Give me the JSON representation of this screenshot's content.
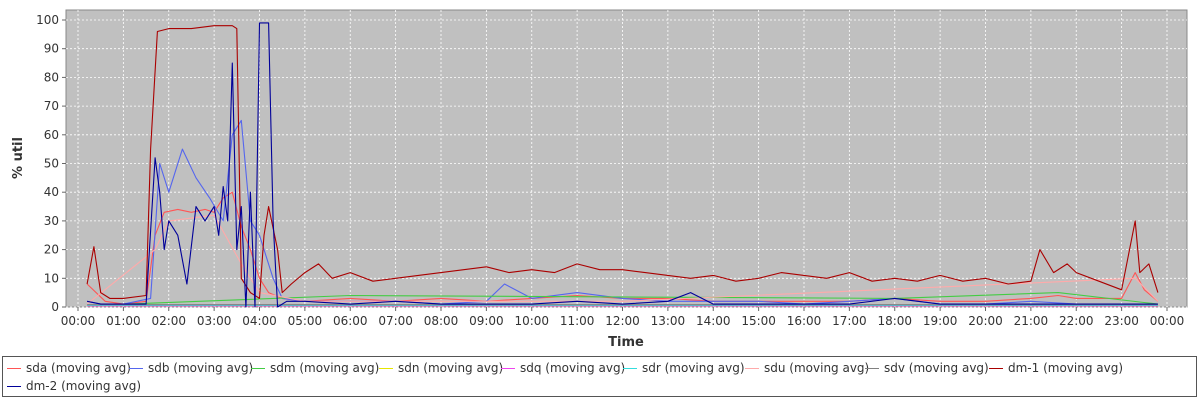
{
  "chart_data": {
    "type": "line",
    "title": "",
    "xlabel": "Time",
    "ylabel": "% util",
    "ylim": [
      0,
      100
    ],
    "xlim": [
      "00:00",
      "24:00"
    ],
    "yticks": [
      "0",
      "10",
      "20",
      "30",
      "40",
      "50",
      "60",
      "70",
      "80",
      "90",
      "100"
    ],
    "xticks": [
      "00:00",
      "01:00",
      "02:00",
      "03:00",
      "04:00",
      "05:00",
      "06:00",
      "07:00",
      "08:00",
      "09:00",
      "10:00",
      "11:00",
      "12:00",
      "13:00",
      "14:00",
      "15:00",
      "16:00",
      "17:00",
      "18:00",
      "19:00",
      "20:00",
      "21:00",
      "22:00",
      "23:00",
      "00:00"
    ],
    "grid": true,
    "legend_position": "bottom",
    "background": "#c0c0c0",
    "series": [
      {
        "name": "sda (moving avg)",
        "color": "#ff5555",
        "x": [
          0.2,
          0.6,
          1.0,
          1.5,
          1.7,
          1.9,
          2.2,
          2.5,
          2.8,
          3.0,
          3.2,
          3.4,
          3.6,
          3.8,
          4.0,
          4.2,
          4.5,
          5.0,
          6.0,
          7.0,
          8.0,
          9.0,
          10.0,
          11.0,
          12.0,
          13.0,
          14.0,
          15.0,
          16.0,
          17.0,
          18.0,
          19.0,
          20.0,
          21.0,
          21.6,
          22.0,
          23.0,
          23.3,
          23.5,
          23.8
        ],
        "y": [
          8,
          2,
          1,
          2,
          25,
          33,
          34,
          33,
          34,
          33,
          38,
          40,
          28,
          20,
          10,
          5,
          3,
          2,
          3,
          2,
          3,
          2,
          3,
          4,
          3,
          3,
          2,
          2,
          2,
          2,
          3,
          2,
          2,
          3,
          4,
          3,
          3,
          12,
          6,
          2
        ]
      },
      {
        "name": "sdb (moving avg)",
        "color": "#5566ee",
        "x": [
          0.2,
          0.5,
          1.0,
          1.6,
          1.8,
          2.0,
          2.3,
          2.6,
          2.9,
          3.2,
          3.4,
          3.6,
          3.8,
          4.0,
          4.1,
          4.3,
          4.5,
          5.0,
          6.0,
          7.0,
          8.0,
          9.0,
          9.4,
          10.0,
          11.0,
          12.0,
          13.0,
          14.0,
          15.0,
          16.0,
          17.0,
          18.0,
          19.0,
          20.0,
          21.0,
          22.0,
          23.0,
          23.8
        ],
        "y": [
          2,
          1,
          1,
          3,
          50,
          40,
          55,
          45,
          38,
          30,
          60,
          65,
          30,
          25,
          20,
          10,
          3,
          2,
          2,
          2,
          1,
          2,
          8,
          3,
          5,
          3,
          2,
          2,
          2,
          1,
          2,
          3,
          1,
          1,
          2,
          1,
          1,
          1
        ]
      },
      {
        "name": "sdm (moving avg)",
        "color": "#44cc44",
        "x": [
          0.2,
          6.0,
          18.0,
          21.6,
          23.8
        ],
        "y": [
          0.5,
          4,
          3,
          5,
          1
        ]
      },
      {
        "name": "sdn (moving avg)",
        "color": "#e6e600",
        "x": [
          0.2,
          23.8
        ],
        "y": [
          0.3,
          0.3
        ]
      },
      {
        "name": "sdq (moving avg)",
        "color": "#ee44ee",
        "x": [
          0.2,
          23.8
        ],
        "y": [
          0.4,
          0.4
        ]
      },
      {
        "name": "sdr (moving avg)",
        "color": "#33dddd",
        "x": [
          0.2,
          23.8
        ],
        "y": [
          0.6,
          0.6
        ]
      },
      {
        "name": "sdu (moving avg)",
        "color": "#ffaaaa",
        "x": [
          0.2,
          1.7,
          2.0,
          3.0,
          3.6,
          4.0,
          5.0,
          12.0,
          23.3,
          23.8
        ],
        "y": [
          1,
          20,
          30,
          32,
          15,
          5,
          2,
          2,
          10,
          2
        ]
      },
      {
        "name": "sdv (moving avg)",
        "color": "#808080",
        "x": [
          0.2,
          23.8
        ],
        "y": [
          0.8,
          0.8
        ]
      },
      {
        "name": "dm-1 (moving avg)",
        "color": "#aa0000",
        "x": [
          0.2,
          0.35,
          0.5,
          0.7,
          1.0,
          1.5,
          1.6,
          1.75,
          2.0,
          2.5,
          3.0,
          3.4,
          3.5,
          3.6,
          3.8,
          4.0,
          4.1,
          4.2,
          4.4,
          4.5,
          4.7,
          5.0,
          5.3,
          5.6,
          6.0,
          6.5,
          7.0,
          7.5,
          8.0,
          8.5,
          9.0,
          9.5,
          10.0,
          10.5,
          11.0,
          11.5,
          12.0,
          12.5,
          13.0,
          13.5,
          14.0,
          14.5,
          15.0,
          15.5,
          16.0,
          16.5,
          17.0,
          17.5,
          18.0,
          18.5,
          19.0,
          19.5,
          20.0,
          20.5,
          21.0,
          21.2,
          21.5,
          21.8,
          22.0,
          22.5,
          23.0,
          23.3,
          23.4,
          23.6,
          23.8
        ],
        "y": [
          8,
          21,
          5,
          3,
          3,
          4,
          55,
          96,
          97,
          97,
          98,
          98,
          97,
          10,
          5,
          3,
          25,
          35,
          20,
          5,
          8,
          12,
          15,
          10,
          12,
          9,
          10,
          11,
          12,
          13,
          14,
          12,
          13,
          12,
          15,
          13,
          13,
          12,
          11,
          10,
          11,
          9,
          10,
          12,
          11,
          10,
          12,
          9,
          10,
          9,
          11,
          9,
          10,
          8,
          9,
          20,
          12,
          15,
          12,
          9,
          6,
          30,
          12,
          15,
          5
        ]
      },
      {
        "name": "dm-2 (moving avg)",
        "color": "#000099",
        "x": [
          0.2,
          0.5,
          1.0,
          1.5,
          1.7,
          1.8,
          1.9,
          2.0,
          2.2,
          2.4,
          2.6,
          2.8,
          3.0,
          3.1,
          3.2,
          3.3,
          3.4,
          3.5,
          3.6,
          3.7,
          3.8,
          3.9,
          4.0,
          4.2,
          4.3,
          4.4,
          4.6,
          5.0,
          6.0,
          7.0,
          8.0,
          9.0,
          10.0,
          11.0,
          12.0,
          13.0,
          13.5,
          14.0,
          15.0,
          16.0,
          17.0,
          18.0,
          19.0,
          20.0,
          21.0,
          22.0,
          23.0,
          23.8
        ],
        "y": [
          2,
          1,
          1,
          1,
          52,
          40,
          20,
          30,
          25,
          8,
          35,
          30,
          35,
          25,
          42,
          30,
          85,
          20,
          35,
          0,
          40,
          0,
          99,
          99,
          30,
          0,
          2,
          2,
          1,
          2,
          1,
          1,
          1,
          2,
          1,
          2,
          5,
          1,
          1,
          1,
          1,
          3,
          1,
          1,
          1,
          1,
          1,
          1
        ]
      }
    ]
  }
}
